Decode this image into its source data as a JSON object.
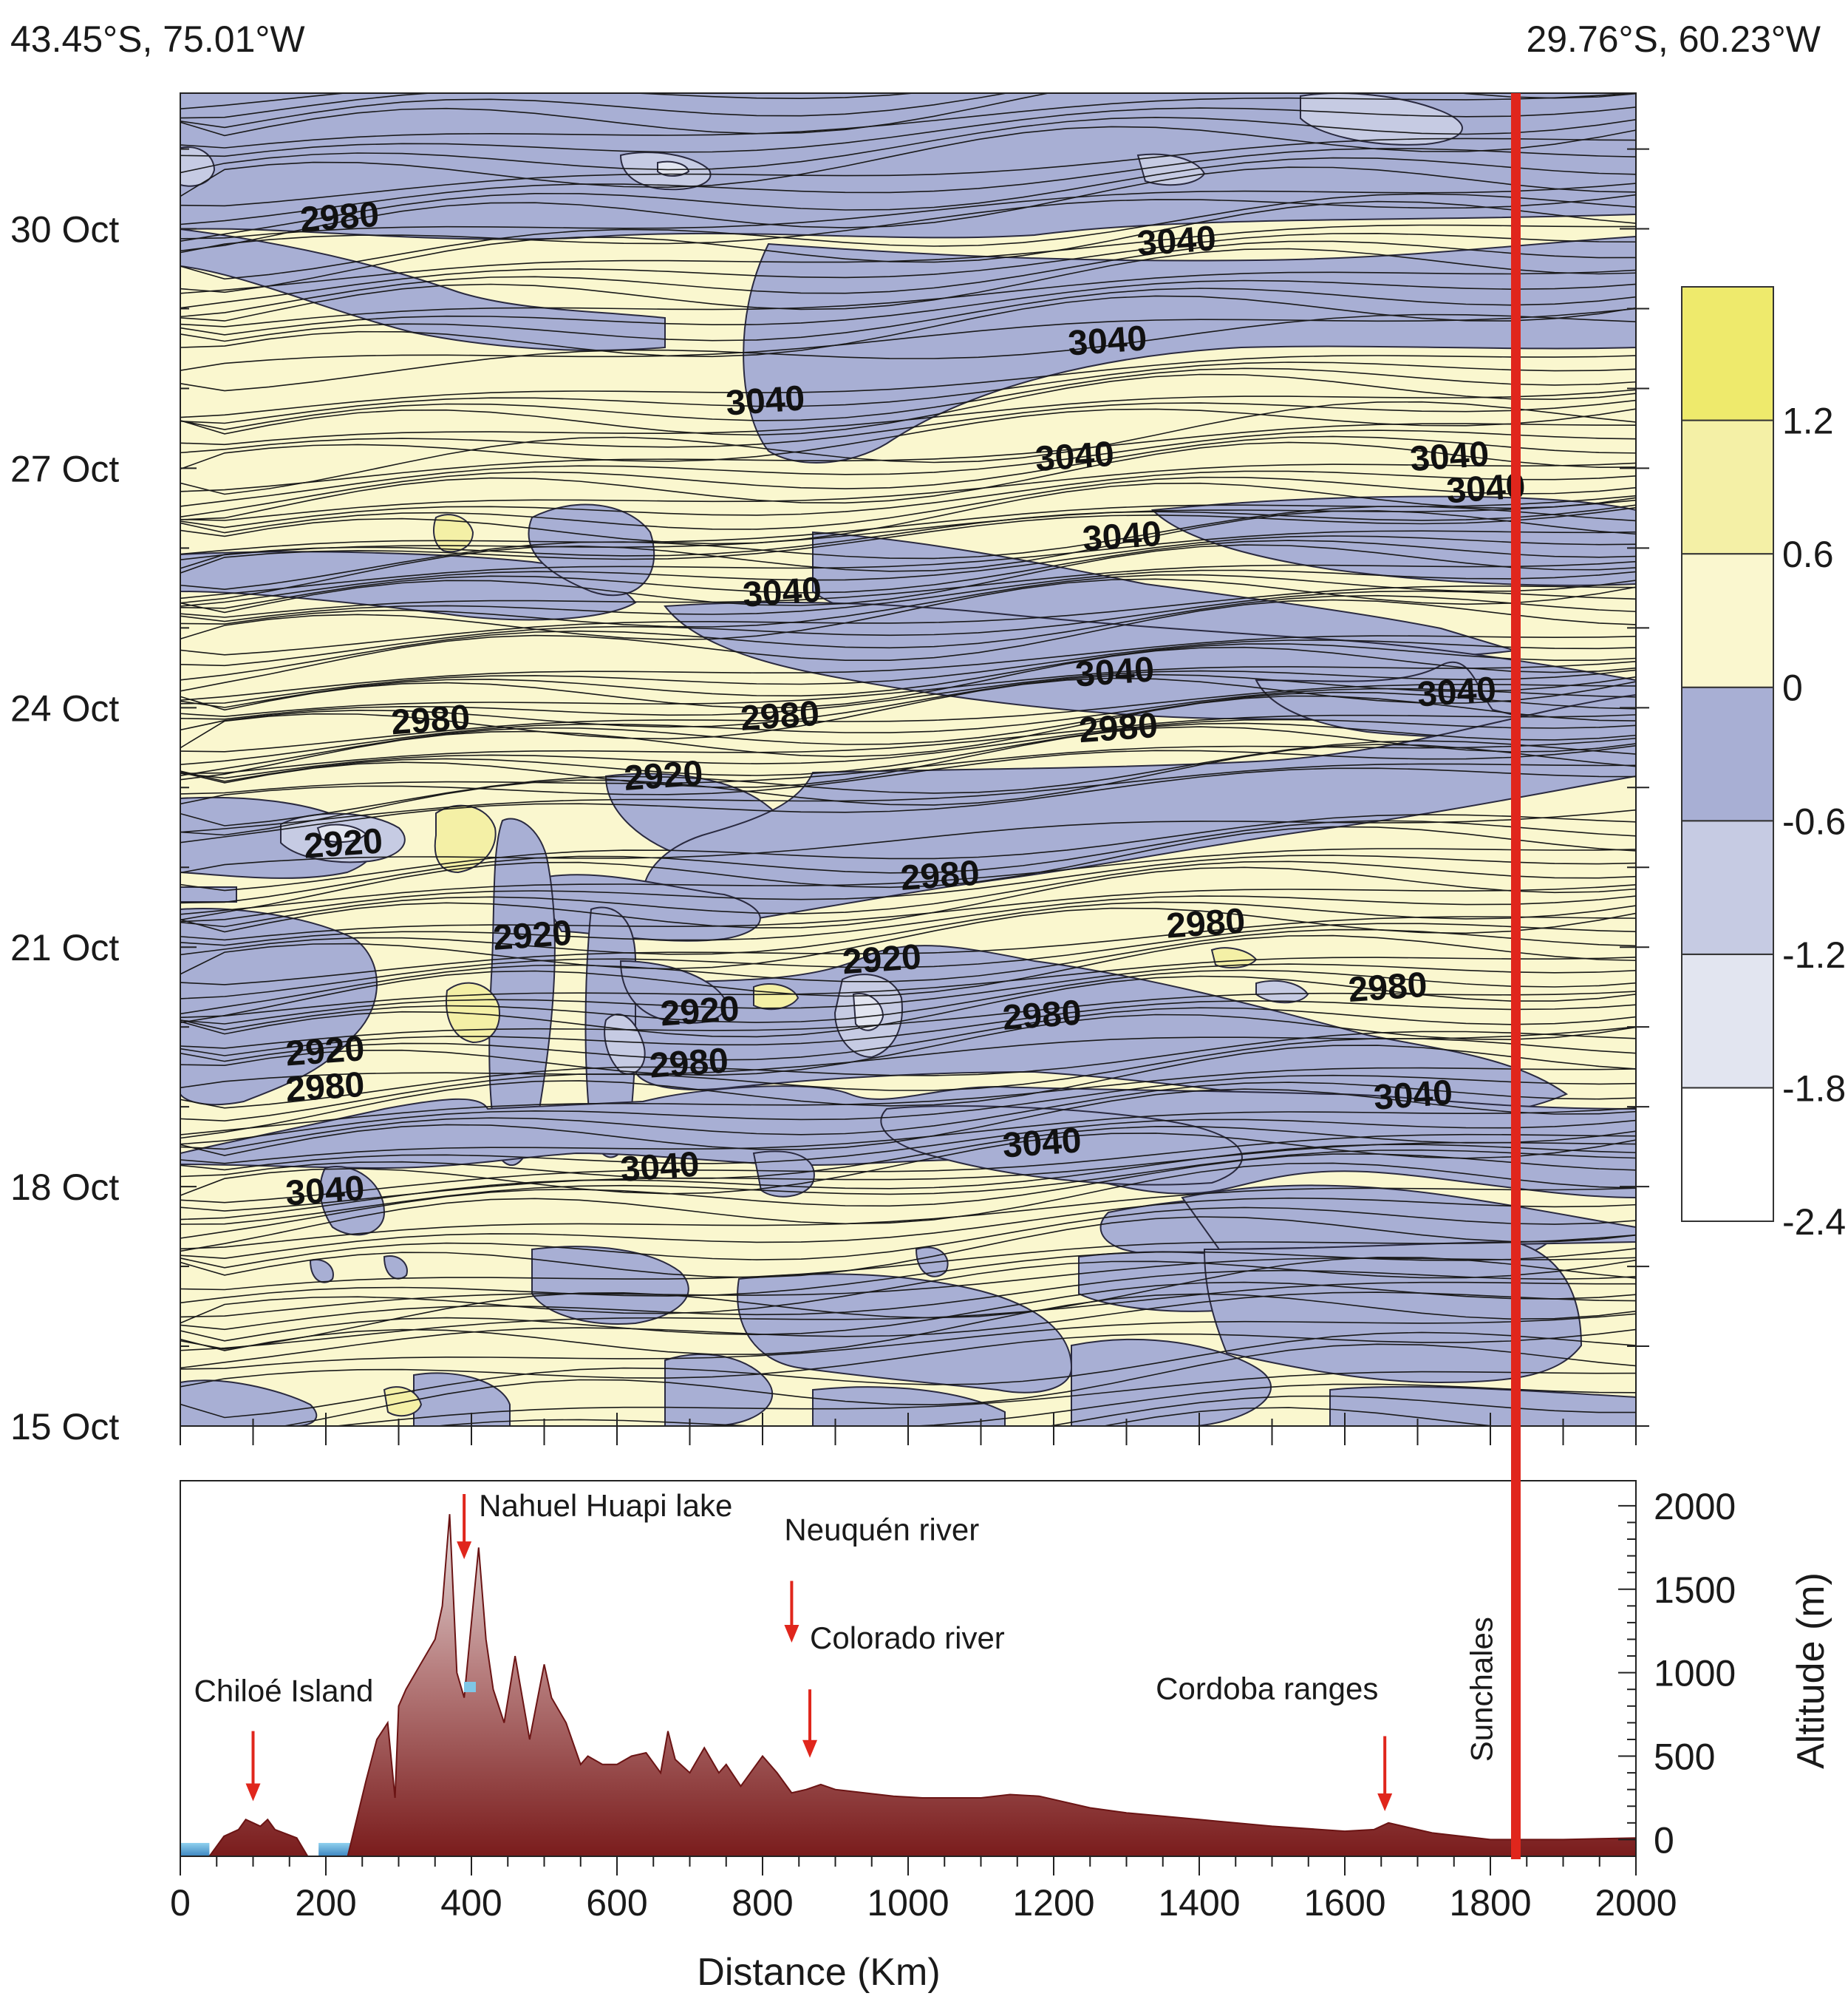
{
  "corner_left": "43.45°S, 75.01°W",
  "corner_right": "29.76°S, 60.23°W",
  "colors": {
    "pos_high": "#eeea6c",
    "pos_mid": "#f4f0a6",
    "pos_low": "#faf7cf",
    "neg_low": "#a8afd4",
    "neg_mid": "#c6cbe3",
    "neg_high": "#e2e5f0",
    "neg_max": "#ffffff",
    "marker_line": "#e0261c",
    "terrain_top": "#e6e0e0",
    "terrain_bottom": "#7a1c1c",
    "water": "#7fc6e6",
    "arrow": "#e0261c"
  },
  "chart_data": [
    {
      "type": "heatmap",
      "title": "",
      "x_range_km": [
        0,
        2000
      ],
      "y_axis_labels": [
        "15 Oct",
        "18 Oct",
        "21 Oct",
        "24 Oct",
        "27 Oct",
        "30 Oct"
      ],
      "y_axis_days": [
        15,
        18,
        21,
        24,
        27,
        30
      ],
      "y_range_days": [
        15,
        31.7
      ],
      "colorbar": {
        "levels": [
          -2.4,
          -1.8,
          -1.2,
          -0.6,
          0,
          0.6,
          1.2,
          1.8
        ],
        "tick_labels": [
          "-2.4",
          "-1.8",
          "-1.2",
          "-0.6",
          "0",
          "0.6",
          "1.2"
        ]
      },
      "contour_labels": [
        {
          "text": "2980",
          "km": 220,
          "day": 30.0
        },
        {
          "text": "3040",
          "km": 1370,
          "day": 29.7
        },
        {
          "text": "3040",
          "km": 1275,
          "day": 28.45
        },
        {
          "text": "3040",
          "km": 805,
          "day": 27.7
        },
        {
          "text": "3040",
          "km": 1230,
          "day": 27.0
        },
        {
          "text": "3040",
          "km": 1745,
          "day": 27.0
        },
        {
          "text": "3040",
          "km": 1795,
          "day": 26.6
        },
        {
          "text": "3040",
          "km": 1295,
          "day": 26.0
        },
        {
          "text": "3040",
          "km": 828,
          "day": 25.3
        },
        {
          "text": "3040",
          "km": 1285,
          "day": 24.3
        },
        {
          "text": "3040",
          "km": 1755,
          "day": 24.05
        },
        {
          "text": "2980",
          "km": 345,
          "day": 23.7
        },
        {
          "text": "2980",
          "km": 825,
          "day": 23.75
        },
        {
          "text": "2980",
          "km": 1290,
          "day": 23.6
        },
        {
          "text": "2920",
          "km": 665,
          "day": 23.0
        },
        {
          "text": "2920",
          "km": 225,
          "day": 22.15
        },
        {
          "text": "2980",
          "km": 1045,
          "day": 21.75
        },
        {
          "text": "2980",
          "km": 1410,
          "day": 21.15
        },
        {
          "text": "2920",
          "km": 485,
          "day": 21.0
        },
        {
          "text": "2920",
          "km": 965,
          "day": 20.7
        },
        {
          "text": "2980",
          "km": 1660,
          "day": 20.35
        },
        {
          "text": "2920",
          "km": 715,
          "day": 20.05
        },
        {
          "text": "2980",
          "km": 1185,
          "day": 20.0
        },
        {
          "text": "2920",
          "km": 200,
          "day": 19.55
        },
        {
          "text": "2980",
          "km": 200,
          "day": 19.1
        },
        {
          "text": "2980",
          "km": 700,
          "day": 19.4
        },
        {
          "text": "3040",
          "km": 1695,
          "day": 19.0
        },
        {
          "text": "3040",
          "km": 1185,
          "day": 18.4
        },
        {
          "text": "3040",
          "km": 660,
          "day": 18.1
        },
        {
          "text": "3040",
          "km": 200,
          "day": 17.8
        }
      ],
      "marker_km": 1835
    },
    {
      "type": "area",
      "title": "",
      "xlabel": "Distance (Km)",
      "ylabel": "Altitude (m)",
      "x_ticks": [
        "0",
        "200",
        "400",
        "600",
        "800",
        "1000",
        "1200",
        "1400",
        "1600",
        "1800",
        "2000"
      ],
      "x_tick_values": [
        0,
        200,
        400,
        600,
        800,
        1000,
        1200,
        1400,
        1600,
        1800,
        2000
      ],
      "y_ticks": [
        "0",
        "500",
        "1000",
        "1500",
        "2000"
      ],
      "y_tick_values": [
        0,
        500,
        1000,
        1500,
        2000
      ],
      "xlim": [
        0,
        2000
      ],
      "ylim": [
        -100,
        2150
      ],
      "x": [
        0,
        40,
        60,
        80,
        90,
        100,
        110,
        120,
        130,
        160,
        175,
        190,
        200,
        210,
        230,
        240,
        255,
        270,
        285,
        295,
        300,
        310,
        330,
        350,
        360,
        370,
        380,
        390,
        400,
        410,
        420,
        430,
        445,
        460,
        480,
        500,
        510,
        530,
        550,
        560,
        580,
        600,
        620,
        640,
        660,
        670,
        680,
        700,
        720,
        740,
        750,
        770,
        800,
        820,
        840,
        860,
        880,
        900,
        940,
        980,
        1020,
        1060,
        1100,
        1140,
        1180,
        1200,
        1250,
        1300,
        1400,
        1500,
        1600,
        1640,
        1660,
        1680,
        1720,
        1760,
        1800,
        1850,
        1900,
        2000
      ],
      "y": [
        -100,
        -100,
        20,
        60,
        120,
        100,
        80,
        120,
        60,
        10,
        -100,
        -100,
        -100,
        -100,
        -100,
        80,
        350,
        600,
        700,
        250,
        800,
        900,
        1050,
        1200,
        1400,
        1950,
        1000,
        850,
        1300,
        1750,
        1200,
        900,
        700,
        1100,
        600,
        1050,
        850,
        700,
        450,
        500,
        450,
        450,
        500,
        520,
        400,
        650,
        480,
        400,
        550,
        400,
        450,
        320,
        500,
        400,
        280,
        300,
        330,
        300,
        280,
        260,
        250,
        250,
        250,
        270,
        260,
        240,
        190,
        160,
        120,
        80,
        50,
        60,
        100,
        80,
        40,
        20,
        0,
        0,
        0,
        10
      ],
      "water_segments": [
        [
          0,
          40
        ],
        [
          190,
          235
        ]
      ],
      "annotations": [
        {
          "text": "Chiloé Island",
          "km": 100,
          "arrow_top_m": 650,
          "arrow_tip_m": 230
        },
        {
          "text": "Nahuel Huapi lake",
          "km": 390,
          "arrow_top_m": 2070,
          "arrow_tip_m": 1680
        },
        {
          "text": "Neuquén river",
          "km": 840,
          "arrow_top_m": 1550,
          "arrow_tip_m": 1180
        },
        {
          "text": "Colorado river",
          "km": 865,
          "arrow_top_m": 900,
          "arrow_tip_m": 490
        },
        {
          "text": "Cordoba ranges",
          "km": 1655,
          "arrow_top_m": 620,
          "arrow_tip_m": 170
        }
      ],
      "site_label": "Sunchales",
      "marker_km": 1835
    }
  ]
}
